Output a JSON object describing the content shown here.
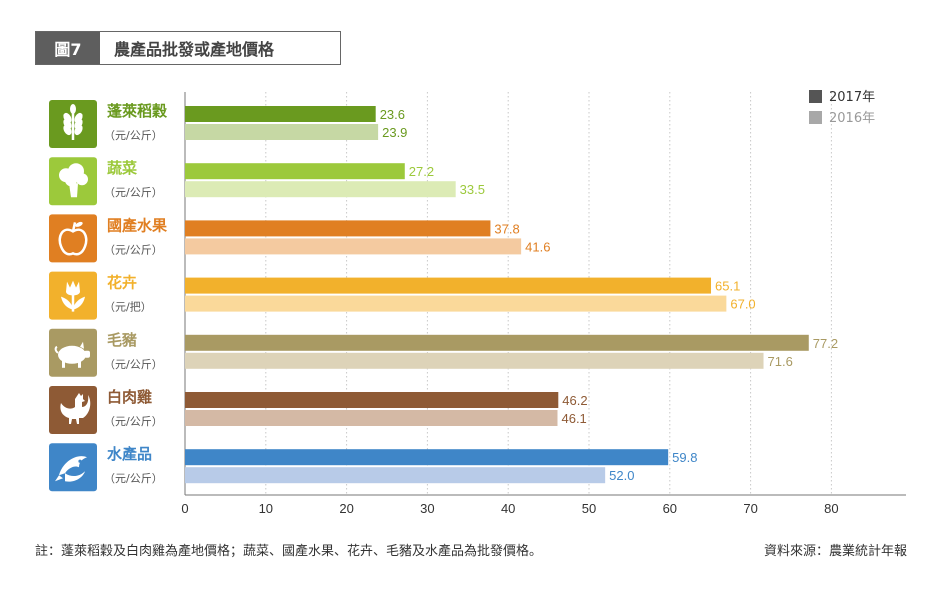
{
  "header": {
    "figure_no": "圖7",
    "title": "農產品批發或產地價格"
  },
  "chart_data": {
    "type": "bar",
    "orientation": "horizontal",
    "categories": [
      {
        "name": "蓬萊稻穀",
        "unit": "（元/公斤）",
        "icon": "wheat-icon",
        "color_2017": "#6a9a1f",
        "color_2016": "#c6d8a4"
      },
      {
        "name": "蔬菜",
        "unit": "（元/公斤）",
        "icon": "broccoli-icon",
        "color_2017": "#9cc93b",
        "color_2016": "#dcebb5"
      },
      {
        "name": "國產水果",
        "unit": "（元/公斤）",
        "icon": "apple-icon",
        "color_2017": "#e07f22",
        "color_2016": "#f4caa0"
      },
      {
        "name": "花卉",
        "unit": "（元/把）",
        "icon": "tulip-icon",
        "color_2017": "#f2b12c",
        "color_2016": "#fad99a"
      },
      {
        "name": "毛豬",
        "unit": "（元/公斤）",
        "icon": "pig-icon",
        "color_2017": "#a99a63",
        "color_2016": "#ddd3b8"
      },
      {
        "name": "白肉雞",
        "unit": "（元/公斤）",
        "icon": "rooster-icon",
        "color_2017": "#8e5a35",
        "color_2016": "#d4b9a5"
      },
      {
        "name": "水產品",
        "unit": "（元/公斤）",
        "icon": "fish-icon",
        "color_2017": "#3f86c8",
        "color_2016": "#b8cbe8"
      }
    ],
    "series": [
      {
        "name": "2017年",
        "values": [
          23.6,
          27.2,
          37.8,
          65.1,
          77.2,
          46.2,
          59.8
        ],
        "legend_color": "#555555"
      },
      {
        "name": "2016年",
        "values": [
          23.9,
          33.5,
          41.6,
          67.0,
          71.6,
          46.1,
          52.0
        ],
        "legend_color": "#a8a8a8"
      }
    ],
    "xlim": [
      0,
      80
    ],
    "xticks": [
      0,
      10,
      20,
      30,
      40,
      50,
      60,
      70,
      80
    ],
    "grid": true,
    "legend_position": "top-right"
  },
  "footnote": "註：蓬萊稻穀及白肉雞為產地價格；蔬菜、國產水果、花卉、毛豬及水產品為批發價格。",
  "source": "資料來源：農業統計年報"
}
